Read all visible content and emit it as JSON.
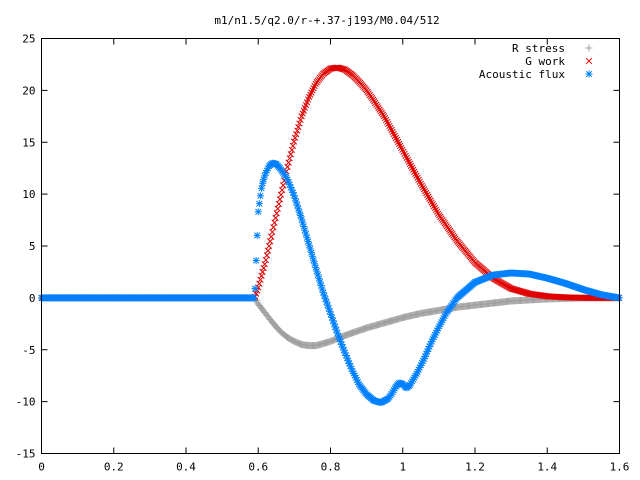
{
  "chart_data": {
    "type": "scatter",
    "title": "m1/n1.5/q2.0/r-+.37-j193/M0.04/512",
    "xlabel": "",
    "ylabel": "",
    "xlim": [
      0,
      1.6
    ],
    "ylim": [
      -15,
      25
    ],
    "xticks": [
      0,
      0.2,
      0.4,
      0.6,
      0.8,
      1,
      1.2,
      1.4,
      1.6
    ],
    "xtick_labels": [
      "0",
      "0.2",
      "0.4",
      "0.6",
      "0.8",
      "1",
      "1.2",
      "1.4",
      "1.6"
    ],
    "yticks": [
      -15,
      -10,
      -5,
      0,
      5,
      10,
      15,
      20,
      25
    ],
    "ytick_labels": [
      "-15",
      "-10",
      "-5",
      "0",
      "5",
      "10",
      "15",
      "20",
      "25"
    ],
    "grid": false,
    "legend": "top-right",
    "series": [
      {
        "name": "R stress",
        "marker": "plus",
        "color": "#a0a0a0",
        "x": [
          0,
          0.59,
          0.6,
          0.62,
          0.64,
          0.66,
          0.68,
          0.7,
          0.72,
          0.74,
          0.76,
          0.78,
          0.8,
          0.82,
          0.85,
          0.9,
          0.95,
          1.0,
          1.05,
          1.1,
          1.15,
          1.2,
          1.25,
          1.3,
          1.35,
          1.4,
          1.45,
          1.5,
          1.55,
          1.6
        ],
        "y": [
          0,
          0,
          -0.6,
          -1.5,
          -2.4,
          -3.2,
          -3.8,
          -4.2,
          -4.5,
          -4.6,
          -4.6,
          -4.4,
          -4.2,
          -3.9,
          -3.5,
          -2.9,
          -2.4,
          -1.9,
          -1.5,
          -1.2,
          -0.9,
          -0.7,
          -0.5,
          -0.3,
          -0.2,
          -0.1,
          -0.05,
          0,
          0,
          0
        ]
      },
      {
        "name": "G work",
        "marker": "cross",
        "color": "#e00000",
        "x": [
          0,
          0.59,
          0.6,
          0.62,
          0.64,
          0.66,
          0.68,
          0.7,
          0.72,
          0.74,
          0.76,
          0.78,
          0.8,
          0.82,
          0.84,
          0.86,
          0.88,
          0.9,
          0.92,
          0.95,
          1.0,
          1.05,
          1.1,
          1.15,
          1.2,
          1.25,
          1.3,
          1.35,
          1.4,
          1.45,
          1.5,
          1.55,
          1.6
        ],
        "y": [
          0,
          0,
          1.0,
          3.5,
          6.5,
          9.5,
          12.5,
          15.2,
          17.5,
          19.3,
          20.7,
          21.6,
          22.1,
          22.2,
          22.0,
          21.5,
          20.8,
          20.0,
          19.0,
          17.4,
          14.2,
          11.0,
          8.0,
          5.5,
          3.4,
          1.9,
          0.9,
          0.4,
          0.15,
          0.05,
          0,
          0,
          0
        ]
      },
      {
        "name": "Acoustic flux",
        "marker": "star",
        "color": "#0080ff",
        "x": [
          0,
          0.59,
          0.595,
          0.6,
          0.605,
          0.61,
          0.62,
          0.63,
          0.64,
          0.65,
          0.66,
          0.68,
          0.7,
          0.72,
          0.74,
          0.76,
          0.78,
          0.8,
          0.82,
          0.84,
          0.86,
          0.88,
          0.9,
          0.92,
          0.94,
          0.96,
          0.97,
          0.98,
          0.99,
          1.0,
          1.01,
          1.02,
          1.04,
          1.06,
          1.08,
          1.1,
          1.12,
          1.15,
          1.2,
          1.25,
          1.3,
          1.35,
          1.4,
          1.45,
          1.5,
          1.55,
          1.6
        ],
        "y": [
          0,
          0,
          4.5,
          8.3,
          9.6,
          10.8,
          12.0,
          12.7,
          13.0,
          12.9,
          12.5,
          11.5,
          9.8,
          7.6,
          5.2,
          2.8,
          0.5,
          -1.5,
          -3.5,
          -5.3,
          -7.0,
          -8.4,
          -9.3,
          -9.9,
          -10.1,
          -9.7,
          -9.2,
          -8.6,
          -8.2,
          -8.3,
          -8.7,
          -8.4,
          -7.2,
          -5.8,
          -4.2,
          -2.8,
          -1.5,
          0,
          1.5,
          2.2,
          2.4,
          2.3,
          1.9,
          1.4,
          0.8,
          0.3,
          0
        ]
      }
    ]
  }
}
